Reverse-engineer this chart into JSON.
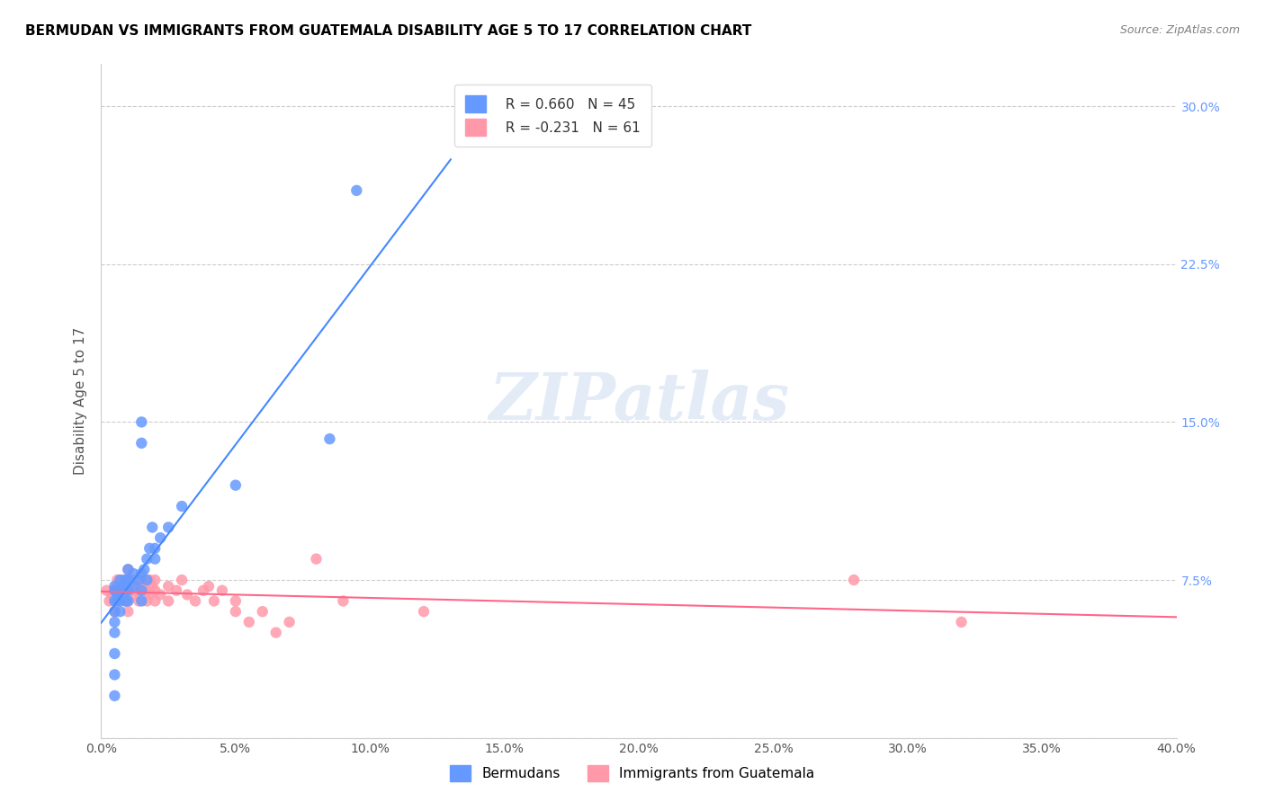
{
  "title": "BERMUDAN VS IMMIGRANTS FROM GUATEMALA DISABILITY AGE 5 TO 17 CORRELATION CHART",
  "source": "Source: ZipAtlas.com",
  "ylabel": "Disability Age 5 to 17",
  "xlabel": "",
  "xlim": [
    0.0,
    0.4
  ],
  "ylim": [
    0.0,
    0.32
  ],
  "xticks": [
    0.0,
    0.05,
    0.1,
    0.15,
    0.2,
    0.25,
    0.3,
    0.35,
    0.4
  ],
  "yticks_left": [
    0.0,
    0.075,
    0.15,
    0.225,
    0.3
  ],
  "ytick_labels_right": [
    "7.5%",
    "15.0%",
    "22.5%",
    "30.0%"
  ],
  "ytick_vals_right": [
    0.075,
    0.15,
    0.225,
    0.3
  ],
  "xtick_labels": [
    "0.0%",
    "5.0%",
    "10.0%",
    "15.0%",
    "20.0%",
    "25.0%",
    "30.0%",
    "35.0%",
    "40.0%"
  ],
  "legend_r1": "R = 0.660",
  "legend_n1": "N = 45",
  "legend_r2": "R = -0.231",
  "legend_n2": "N = 61",
  "color_blue": "#6699ff",
  "color_pink": "#ff99aa",
  "color_trend_blue": "#4488ff",
  "color_trend_pink": "#ff6688",
  "watermark": "ZIPatlas",
  "label_bermudans": "Bermudans",
  "label_guatemala": "Immigrants from Guatemala",
  "blue_x": [
    0.005,
    0.005,
    0.005,
    0.005,
    0.005,
    0.005,
    0.005,
    0.005,
    0.005,
    0.006,
    0.006,
    0.006,
    0.007,
    0.007,
    0.007,
    0.007,
    0.008,
    0.009,
    0.009,
    0.009,
    0.01,
    0.01,
    0.01,
    0.01,
    0.012,
    0.012,
    0.014,
    0.015,
    0.015,
    0.015,
    0.015,
    0.015,
    0.016,
    0.017,
    0.017,
    0.018,
    0.019,
    0.02,
    0.02,
    0.022,
    0.025,
    0.03,
    0.05,
    0.085,
    0.095
  ],
  "blue_y": [
    0.02,
    0.03,
    0.04,
    0.05,
    0.055,
    0.06,
    0.065,
    0.07,
    0.072,
    0.065,
    0.068,
    0.07,
    0.06,
    0.065,
    0.07,
    0.075,
    0.072,
    0.065,
    0.07,
    0.075,
    0.065,
    0.07,
    0.075,
    0.08,
    0.072,
    0.078,
    0.075,
    0.065,
    0.07,
    0.078,
    0.14,
    0.15,
    0.08,
    0.075,
    0.085,
    0.09,
    0.1,
    0.085,
    0.09,
    0.095,
    0.1,
    0.11,
    0.12,
    0.142,
    0.26
  ],
  "pink_x": [
    0.002,
    0.003,
    0.004,
    0.005,
    0.005,
    0.005,
    0.006,
    0.006,
    0.007,
    0.007,
    0.008,
    0.008,
    0.009,
    0.009,
    0.009,
    0.01,
    0.01,
    0.01,
    0.01,
    0.01,
    0.011,
    0.011,
    0.012,
    0.012,
    0.013,
    0.013,
    0.014,
    0.014,
    0.015,
    0.015,
    0.016,
    0.017,
    0.017,
    0.018,
    0.018,
    0.019,
    0.02,
    0.02,
    0.02,
    0.022,
    0.025,
    0.025,
    0.028,
    0.03,
    0.032,
    0.035,
    0.038,
    0.04,
    0.042,
    0.045,
    0.05,
    0.05,
    0.055,
    0.06,
    0.065,
    0.07,
    0.08,
    0.09,
    0.12,
    0.28,
    0.32
  ],
  "pink_y": [
    0.07,
    0.065,
    0.068,
    0.06,
    0.065,
    0.07,
    0.072,
    0.075,
    0.068,
    0.072,
    0.07,
    0.075,
    0.065,
    0.07,
    0.075,
    0.06,
    0.065,
    0.07,
    0.075,
    0.08,
    0.07,
    0.075,
    0.068,
    0.072,
    0.07,
    0.075,
    0.065,
    0.072,
    0.07,
    0.075,
    0.072,
    0.065,
    0.07,
    0.068,
    0.075,
    0.072,
    0.065,
    0.07,
    0.075,
    0.068,
    0.065,
    0.072,
    0.07,
    0.075,
    0.068,
    0.065,
    0.07,
    0.072,
    0.065,
    0.07,
    0.06,
    0.065,
    0.055,
    0.06,
    0.05,
    0.055,
    0.085,
    0.065,
    0.06,
    0.075,
    0.055
  ]
}
